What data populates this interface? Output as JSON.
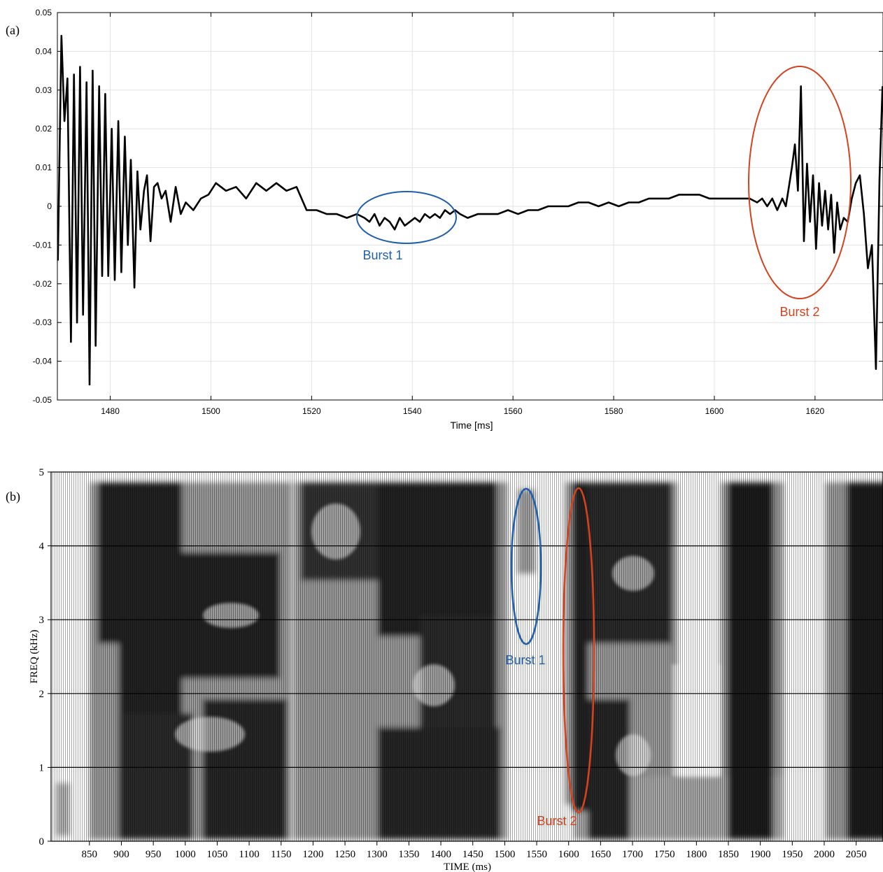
{
  "chart_data": [
    {
      "type": "line",
      "panel_label": "(a)",
      "xlabel": "Time [ms]",
      "ylabel": "",
      "xlim": [
        1469.5,
        1633.5
      ],
      "ylim": [
        -0.05,
        0.05
      ],
      "grid": true,
      "x_ticks": [
        1480,
        1500,
        1520,
        1540,
        1560,
        1580,
        1600,
        1620
      ],
      "x_tick_labels": [
        "1480",
        "1500",
        "1520",
        "1540",
        "1560",
        "1580",
        "1600",
        "1620"
      ],
      "y_ticks": [
        0.05,
        0.04,
        0.03,
        0.02,
        0.01,
        0,
        -0.01,
        -0.02,
        -0.03,
        -0.04,
        -0.05
      ],
      "y_tick_labels": [
        "0.05",
        "0.04",
        "0.03",
        "0.02",
        "0.01",
        "0",
        "-0.01",
        "-0.02",
        "-0.03",
        "-0.04",
        "-0.05"
      ],
      "series": [
        {
          "color": "#000000",
          "x": [
            1469.6,
            1470.3,
            1470.9,
            1471.5,
            1472.2,
            1472.8,
            1473.4,
            1474.0,
            1474.6,
            1475.3,
            1475.9,
            1476.5,
            1477.1,
            1477.8,
            1478.4,
            1479.0,
            1479.6,
            1480.3,
            1480.9,
            1481.6,
            1482.2,
            1482.9,
            1483.5,
            1484.1,
            1484.8,
            1485.4,
            1486.0,
            1486.7,
            1487.3,
            1488.0,
            1488.7,
            1489.4,
            1490.2,
            1491.0,
            1492.0,
            1493.0,
            1494.0,
            1495.0,
            1496.5,
            1498.0,
            1499.5,
            1501.0,
            1503.0,
            1505.0,
            1507.0,
            1509.0,
            1511.0,
            1513.0,
            1515.0,
            1517.0,
            1519.0,
            1521.0,
            1523.0,
            1525.0,
            1527.0,
            1529.0,
            1530.5,
            1531.5,
            1532.5,
            1533.5,
            1534.5,
            1535.5,
            1536.5,
            1537.5,
            1538.5,
            1539.5,
            1540.5,
            1541.5,
            1542.5,
            1543.5,
            1544.5,
            1545.5,
            1546.5,
            1547.5,
            1548.5,
            1549.5,
            1551.0,
            1553.0,
            1555.0,
            1557.0,
            1559.0,
            1561.0,
            1563.0,
            1565.0,
            1567.0,
            1569.0,
            1571.0,
            1573.0,
            1575.0,
            1577.0,
            1579.0,
            1581.0,
            1583.0,
            1585.0,
            1587.0,
            1589.0,
            1591.0,
            1593.0,
            1595.0,
            1597.0,
            1599.0,
            1601.0,
            1603.0,
            1605.0,
            1607.0,
            1608.5,
            1609.5,
            1610.5,
            1611.5,
            1612.5,
            1613.5,
            1614.2,
            1614.8,
            1615.4,
            1616.0,
            1616.6,
            1617.2,
            1617.8,
            1618.4,
            1619.0,
            1619.6,
            1620.2,
            1620.8,
            1621.4,
            1622.0,
            1622.6,
            1623.2,
            1623.8,
            1624.4,
            1625.0,
            1625.7,
            1626.5,
            1627.3,
            1628.1,
            1628.9,
            1629.7,
            1630.5,
            1631.3,
            1632.1,
            1632.8,
            1633.4
          ],
          "y": [
            -0.014,
            0.044,
            0.022,
            0.033,
            -0.035,
            0.034,
            -0.03,
            0.036,
            -0.028,
            0.032,
            -0.046,
            0.035,
            -0.036,
            0.031,
            -0.018,
            0.029,
            -0.018,
            0.02,
            -0.019,
            0.022,
            -0.017,
            0.018,
            -0.01,
            0.012,
            -0.021,
            0.009,
            -0.006,
            0.004,
            0.008,
            -0.009,
            0.005,
            0.006,
            0.002,
            0.004,
            -0.004,
            0.005,
            -0.002,
            0.001,
            -0.001,
            0.002,
            0.003,
            0.006,
            0.004,
            0.005,
            0.002,
            0.006,
            0.004,
            0.006,
            0.004,
            0.005,
            -0.001,
            -0.001,
            -0.002,
            -0.002,
            -0.003,
            -0.002,
            -0.003,
            -0.004,
            -0.002,
            -0.005,
            -0.003,
            -0.004,
            -0.006,
            -0.003,
            -0.005,
            -0.004,
            -0.003,
            -0.004,
            -0.002,
            -0.003,
            -0.002,
            -0.003,
            -0.001,
            -0.002,
            -0.001,
            -0.002,
            -0.003,
            -0.002,
            -0.002,
            -0.002,
            -0.001,
            -0.002,
            -0.001,
            -0.001,
            0.0,
            0.0,
            0.0,
            0.001,
            0.001,
            0.0,
            0.001,
            0.0,
            0.001,
            0.001,
            0.002,
            0.002,
            0.002,
            0.003,
            0.003,
            0.003,
            0.002,
            0.002,
            0.002,
            0.002,
            0.002,
            0.001,
            0.002,
            0.0,
            0.002,
            -0.001,
            0.002,
            0.0,
            0.005,
            0.01,
            0.016,
            0.004,
            0.031,
            -0.009,
            0.011,
            -0.004,
            0.008,
            -0.011,
            0.006,
            -0.005,
            0.004,
            -0.006,
            0.003,
            -0.012,
            0.001,
            -0.006,
            -0.003,
            -0.004,
            0.002,
            0.006,
            0.008,
            -0.002,
            -0.016,
            -0.01,
            -0.042,
            0.007,
            0.031
          ]
        }
      ],
      "annotations": [
        {
          "text": "Burst 1",
          "color": "#1f5fae"
        },
        {
          "text": "Burst 2",
          "color": "#d4421e"
        }
      ]
    },
    {
      "type": "heatmap",
      "panel_label": "(b)",
      "xlabel": "TIME (ms)",
      "ylabel": "FREQ (kHz)",
      "xlim": [
        790,
        2092
      ],
      "ylim": [
        0,
        5
      ],
      "grid": true,
      "colormap": "grayscale spectrogram",
      "x_ticks": [
        850,
        900,
        950,
        1000,
        1050,
        1100,
        1150,
        1200,
        1250,
        1300,
        1350,
        1400,
        1450,
        1500,
        1550,
        1600,
        1650,
        1700,
        1750,
        1800,
        1850,
        1900,
        1950,
        2000,
        2050
      ],
      "x_tick_labels": [
        "850",
        "900",
        "950",
        "1000",
        "1050",
        "1100",
        "1150",
        "1200",
        "1250",
        "1300",
        "1350",
        "1400",
        "1450",
        "1500",
        "1550",
        "1600",
        "1650",
        "1700",
        "1750",
        "1800",
        "1850",
        "1900",
        "1950",
        "2000",
        "2050"
      ],
      "y_ticks": [
        0,
        1,
        2,
        3,
        4,
        5
      ],
      "y_tick_labels": [
        "0",
        "1",
        "2",
        "3",
        "4",
        "5"
      ],
      "energy_regions_ms": [
        [
          855,
          1165
        ],
        [
          1190,
          1505
        ],
        [
          1530,
          1545
        ],
        [
          1610,
          1760
        ],
        [
          1845,
          1900
        ],
        [
          2000,
          2092
        ]
      ],
      "annotations": [
        {
          "text": "Burst 1",
          "color": "#1f5fae"
        },
        {
          "text": "Burst 2",
          "color": "#d4421e"
        }
      ]
    }
  ]
}
